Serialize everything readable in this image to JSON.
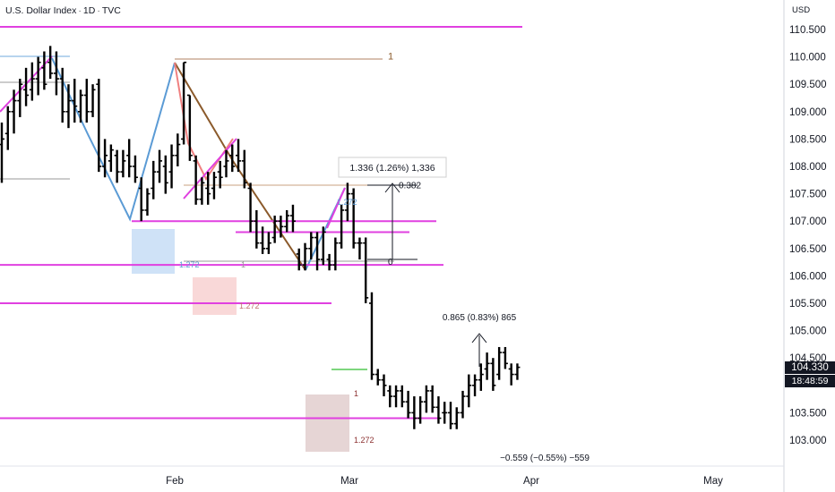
{
  "header": {
    "symbol": "U.S. Dollar Index",
    "interval": "1D",
    "exchange": "TVC",
    "separator": "·"
  },
  "price_axis": {
    "currency": "USD",
    "last_price": "104.330",
    "countdown": "18:48:59"
  },
  "colors": {
    "candle": "#000000",
    "level_line": "#e040e0",
    "last_price_bg": "#131722",
    "zigzag_up": "#5b9bd5",
    "zigzag_brown": "#8b5a2b",
    "pink_line": "#f08080",
    "blue_box": "#cfe2f7",
    "pink_box": "#f9d8d8",
    "brown_box": "#e6d5d5",
    "green_line": "#7ed67e"
  },
  "chart_data": {
    "type": "candlestick",
    "symbol": "U.S. Dollar Index",
    "interval": "1D",
    "ylim": [
      102.6,
      110.8
    ],
    "y_ticks": [
      "110.500",
      "110.000",
      "109.500",
      "109.000",
      "108.500",
      "108.000",
      "107.500",
      "107.000",
      "106.500",
      "106.000",
      "105.500",
      "105.000",
      "104.500",
      "103.500",
      "103.000"
    ],
    "y_tick_values": [
      110.5,
      110.0,
      109.5,
      109.0,
      108.5,
      108.0,
      107.5,
      107.0,
      106.5,
      106.0,
      105.5,
      105.0,
      104.5,
      103.5,
      103.0
    ],
    "x_ticks": [
      "Feb",
      "Mar",
      "Apr",
      "May"
    ],
    "bars": [
      [
        108.4,
        108.8,
        107.7,
        108.5
      ],
      [
        108.6,
        109.1,
        108.3,
        109.0
      ],
      [
        109.0,
        109.4,
        108.6,
        109.2
      ],
      [
        109.2,
        109.6,
        108.9,
        109.5
      ],
      [
        109.4,
        109.8,
        109.1,
        109.3
      ],
      [
        109.4,
        109.9,
        109.2,
        109.6
      ],
      [
        109.6,
        110.0,
        109.3,
        109.9
      ],
      [
        109.8,
        110.1,
        109.4,
        109.5
      ],
      [
        109.9,
        110.2,
        109.6,
        109.7
      ],
      [
        109.7,
        110.1,
        109.3,
        109.6
      ],
      [
        109.6,
        109.8,
        108.8,
        109.0
      ],
      [
        109.0,
        109.5,
        108.7,
        109.2
      ],
      [
        109.2,
        109.6,
        108.8,
        109.1
      ],
      [
        109.0,
        109.4,
        108.8,
        109.3
      ],
      [
        109.3,
        109.6,
        108.8,
        109.0
      ],
      [
        109.0,
        109.5,
        108.9,
        109.4
      ],
      [
        109.5,
        109.6,
        107.9,
        108.0
      ],
      [
        108.0,
        108.5,
        107.8,
        108.2
      ],
      [
        108.1,
        108.4,
        107.9,
        108.3
      ],
      [
        108.2,
        108.3,
        107.7,
        107.9
      ],
      [
        107.9,
        108.3,
        107.8,
        108.1
      ],
      [
        108.2,
        108.5,
        107.8,
        108.0
      ],
      [
        108.0,
        108.2,
        107.7,
        107.8
      ],
      [
        107.6,
        107.8,
        107.0,
        107.2
      ],
      [
        107.2,
        107.6,
        107.1,
        107.5
      ],
      [
        107.6,
        108.1,
        107.4,
        107.9
      ],
      [
        107.9,
        108.3,
        107.7,
        108.1
      ],
      [
        108.0,
        108.2,
        107.5,
        107.7
      ],
      [
        107.9,
        108.4,
        107.6,
        108.2
      ],
      [
        108.2,
        108.6,
        108.0,
        108.4
      ],
      [
        108.5,
        109.9,
        108.4,
        109.9
      ],
      [
        109.3,
        109.3,
        108.1,
        108.2
      ],
      [
        108.1,
        108.2,
        107.3,
        107.4
      ],
      [
        107.4,
        107.8,
        107.3,
        107.7
      ],
      [
        107.6,
        107.9,
        107.3,
        107.5
      ],
      [
        107.6,
        107.9,
        107.4,
        107.8
      ],
      [
        107.9,
        108.1,
        107.6,
        107.8
      ],
      [
        108.0,
        108.3,
        107.8,
        108.1
      ],
      [
        108.2,
        108.4,
        107.9,
        108.0
      ],
      [
        108.2,
        108.5,
        107.9,
        108.1
      ],
      [
        108.1,
        108.3,
        107.6,
        107.7
      ],
      [
        107.6,
        107.7,
        106.8,
        107.0
      ],
      [
        107.0,
        107.2,
        106.5,
        106.6
      ],
      [
        106.6,
        106.9,
        106.4,
        106.5
      ],
      [
        106.5,
        106.8,
        106.4,
        106.6
      ],
      [
        106.7,
        107.1,
        106.6,
        107.0
      ],
      [
        107.0,
        107.1,
        106.7,
        106.9
      ],
      [
        106.9,
        107.2,
        106.8,
        107.1
      ],
      [
        107.1,
        107.3,
        106.8,
        107.0
      ],
      [
        106.4,
        106.5,
        106.1,
        106.2
      ],
      [
        106.2,
        106.6,
        106.1,
        106.5
      ],
      [
        106.5,
        106.8,
        106.3,
        106.7
      ],
      [
        106.7,
        106.8,
        106.1,
        106.3
      ],
      [
        106.3,
        106.9,
        106.2,
        106.8
      ],
      [
        106.3,
        106.4,
        106.1,
        106.2
      ],
      [
        106.2,
        106.7,
        106.1,
        106.6
      ],
      [
        106.6,
        107.3,
        106.5,
        107.2
      ],
      [
        107.2,
        107.7,
        107.0,
        107.5
      ],
      [
        107.5,
        107.6,
        106.5,
        106.6
      ],
      [
        106.6,
        106.7,
        106.3,
        106.6
      ],
      [
        106.6,
        106.7,
        105.5,
        105.6
      ],
      [
        105.5,
        105.7,
        104.1,
        104.2
      ],
      [
        104.2,
        104.3,
        104.0,
        104.1
      ],
      [
        104.1,
        104.2,
        103.8,
        104.0
      ],
      [
        103.9,
        104.0,
        103.6,
        103.8
      ],
      [
        103.8,
        104.0,
        103.6,
        103.9
      ],
      [
        103.9,
        104.0,
        103.6,
        103.7
      ],
      [
        103.7,
        103.9,
        103.4,
        103.5
      ],
      [
        103.5,
        103.8,
        103.2,
        103.4
      ],
      [
        103.4,
        103.8,
        103.3,
        103.7
      ],
      [
        103.7,
        104.0,
        103.5,
        103.9
      ],
      [
        103.9,
        104.0,
        103.5,
        103.6
      ],
      [
        103.6,
        103.8,
        103.3,
        103.4
      ],
      [
        103.5,
        103.7,
        103.3,
        103.5
      ],
      [
        103.5,
        103.7,
        103.2,
        103.3
      ],
      [
        103.3,
        103.6,
        103.2,
        103.5
      ],
      [
        103.5,
        103.9,
        103.4,
        103.8
      ],
      [
        103.8,
        104.2,
        103.6,
        104.0
      ],
      [
        104.0,
        104.2,
        103.8,
        104.1
      ],
      [
        104.1,
        104.4,
        103.9,
        104.2
      ],
      [
        104.3,
        104.6,
        104.1,
        104.4
      ],
      [
        104.4,
        104.5,
        103.9,
        104.0
      ],
      [
        104.2,
        104.7,
        104.1,
        104.6
      ],
      [
        104.6,
        104.7,
        104.3,
        104.4
      ],
      [
        104.3,
        104.4,
        104.0,
        104.2
      ],
      [
        104.2,
        104.4,
        104.1,
        104.33
      ]
    ],
    "horizontal_levels": [
      110.55,
      106.2,
      107.0,
      106.8,
      105.5,
      103.4
    ],
    "annotations": [
      {
        "text": "1",
        "price": 110.0
      },
      {
        "text": "0.382",
        "price": 107.65
      },
      {
        "text": "0",
        "price": 106.25
      },
      {
        "text": "1.272",
        "price": 107.35
      },
      {
        "text": "1.272",
        "price": 106.2
      },
      {
        "text": "1",
        "price": 106.2
      },
      {
        "text": "1.272",
        "price": 105.45
      },
      {
        "text": "1",
        "price": 103.85
      },
      {
        "text": "1.272",
        "price": 103.0
      }
    ],
    "measurements": [
      {
        "text": "1.336 (1.26%) 1,336"
      },
      {
        "text": "0.865 (0.83%) 865"
      },
      {
        "text": "−0.559 (−0.55%) −559"
      }
    ]
  }
}
